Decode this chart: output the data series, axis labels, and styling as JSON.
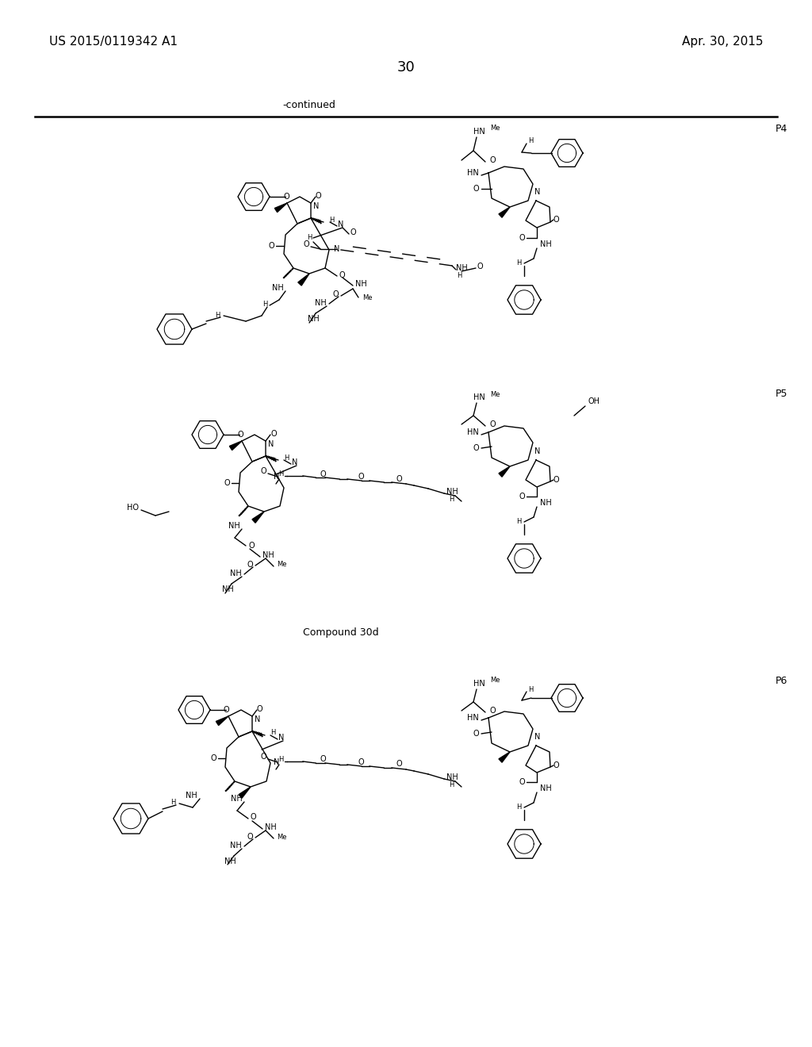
{
  "patent_number": "US 2015/0119342 A1",
  "date": "Apr. 30, 2015",
  "page_number": "30",
  "continued_text": "-continued",
  "compound_label": "Compound 30d",
  "background_color": "#ffffff",
  "text_color": "#000000",
  "fig_width": 10.24,
  "fig_height": 13.2,
  "dpi": 100
}
